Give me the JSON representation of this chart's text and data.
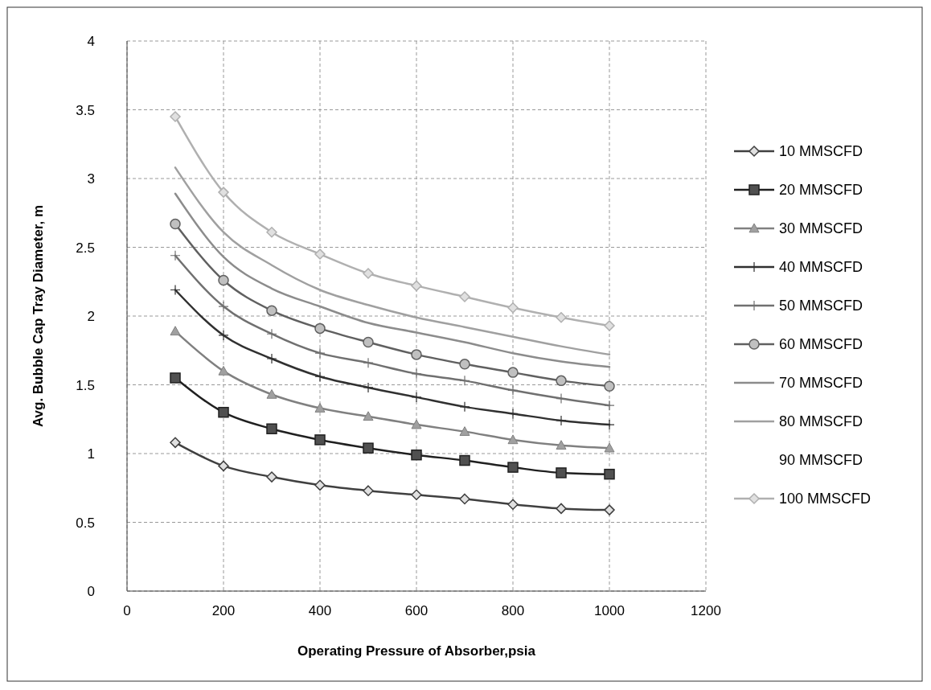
{
  "chart_data": {
    "type": "line",
    "xlabel": "Operating Pressure of Absorber,psia",
    "ylabel": "Avg. Bubble Cap Tray Diameter, m",
    "x": [
      100,
      200,
      300,
      400,
      500,
      600,
      700,
      800,
      900,
      1000
    ],
    "xlim": [
      0,
      1200
    ],
    "xticks": [
      0,
      200,
      400,
      600,
      800,
      1000,
      1200
    ],
    "ylim": [
      0,
      4
    ],
    "yticks": [
      0,
      0.5,
      1,
      1.5,
      2,
      2.5,
      3,
      3.5,
      4
    ],
    "grid": true,
    "legend": "right",
    "line_style": "solid",
    "series": [
      {
        "name": "10 MMSCFD",
        "color": "#404040",
        "marker": "diamond",
        "values": [
          1.08,
          0.91,
          0.83,
          0.77,
          0.73,
          0.7,
          0.67,
          0.63,
          0.6,
          0.59
        ]
      },
      {
        "name": "20 MMSCFD",
        "color": "#202020",
        "marker": "square",
        "values": [
          1.55,
          1.3,
          1.18,
          1.1,
          1.04,
          0.99,
          0.95,
          0.9,
          0.86,
          0.85
        ]
      },
      {
        "name": "30 MMSCFD",
        "color": "#808080",
        "marker": "triangle",
        "values": [
          1.89,
          1.6,
          1.43,
          1.33,
          1.27,
          1.21,
          1.16,
          1.1,
          1.06,
          1.04
        ]
      },
      {
        "name": "40 MMSCFD",
        "color": "#303030",
        "marker": "cross",
        "values": [
          2.19,
          1.86,
          1.69,
          1.56,
          1.48,
          1.41,
          1.34,
          1.29,
          1.24,
          1.21
        ]
      },
      {
        "name": "50 MMSCFD",
        "color": "#707070",
        "marker": "cross",
        "values": [
          2.44,
          2.07,
          1.87,
          1.73,
          1.66,
          1.58,
          1.53,
          1.46,
          1.4,
          1.35
        ]
      },
      {
        "name": "60 MMSCFD",
        "color": "#606060",
        "marker": "circle",
        "values": [
          2.67,
          2.26,
          2.04,
          1.91,
          1.81,
          1.72,
          1.65,
          1.59,
          1.53,
          1.49
        ]
      },
      {
        "name": "70 MMSCFD",
        "color": "#8c8c8c",
        "marker": "none",
        "values": [
          2.89,
          2.43,
          2.2,
          2.07,
          1.95,
          1.88,
          1.81,
          1.73,
          1.67,
          1.63
        ]
      },
      {
        "name": "80 MMSCFD",
        "color": "#a0a0a0",
        "marker": "none",
        "values": [
          3.08,
          2.61,
          2.37,
          2.19,
          2.08,
          1.99,
          1.92,
          1.85,
          1.78,
          1.72
        ]
      },
      {
        "name": "90 MMSCFD",
        "marker": "none",
        "values": [
          null,
          null,
          null,
          null,
          null,
          null,
          null,
          null,
          null,
          null
        ]
      },
      {
        "name": "100 MMSCFD",
        "color": "#b0b0b0",
        "marker": "diamond",
        "values": [
          3.45,
          2.9,
          2.61,
          2.45,
          2.31,
          2.22,
          2.14,
          2.06,
          1.99,
          1.93
        ]
      }
    ]
  }
}
